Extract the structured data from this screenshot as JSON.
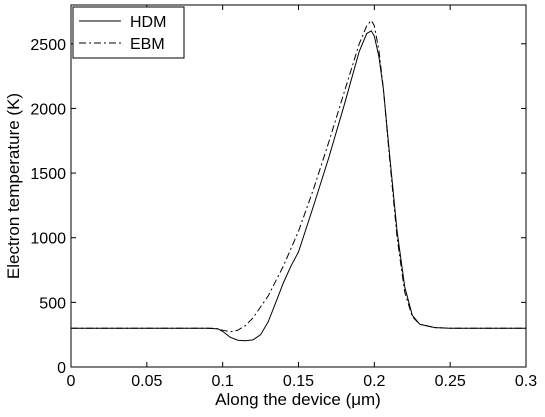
{
  "chart_data": {
    "type": "line",
    "title": "",
    "xlabel": "Along the device (μm)",
    "ylabel": "Electron temperature (K)",
    "xlim": [
      0,
      0.3
    ],
    "ylim": [
      0,
      2800
    ],
    "xticks": [
      0,
      0.05,
      0.1,
      0.15,
      0.2,
      0.25,
      0.3
    ],
    "xtick_labels": [
      "0",
      "0.05",
      "0.1",
      "0.15",
      "0.2",
      "0.25",
      "0.3"
    ],
    "yticks": [
      0,
      500,
      1000,
      1500,
      2000,
      2500
    ],
    "ytick_labels": [
      "0",
      "500",
      "1000",
      "1500",
      "2000",
      "2500"
    ],
    "grid": false,
    "legend_position": "top-left",
    "series": [
      {
        "name": "HDM",
        "style": "solid",
        "color": "#000000",
        "x": [
          0,
          0.05,
          0.09,
          0.097,
          0.1,
          0.105,
          0.11,
          0.115,
          0.12,
          0.125,
          0.13,
          0.135,
          0.14,
          0.145,
          0.15,
          0.16,
          0.17,
          0.18,
          0.19,
          0.195,
          0.198,
          0.2,
          0.203,
          0.206,
          0.21,
          0.215,
          0.22,
          0.225,
          0.23,
          0.24,
          0.25,
          0.3
        ],
        "y": [
          300,
          300,
          300,
          295,
          275,
          230,
          207,
          203,
          210,
          250,
          350,
          500,
          650,
          780,
          890,
          1250,
          1620,
          2020,
          2440,
          2580,
          2600,
          2560,
          2400,
          2150,
          1650,
          1050,
          620,
          400,
          330,
          305,
          300,
          300
        ]
      },
      {
        "name": "EBM",
        "style": "dashdot",
        "color": "#000000",
        "x": [
          0,
          0.05,
          0.095,
          0.1,
          0.105,
          0.11,
          0.115,
          0.12,
          0.13,
          0.14,
          0.15,
          0.16,
          0.17,
          0.18,
          0.19,
          0.195,
          0.198,
          0.2,
          0.203,
          0.206,
          0.21,
          0.215,
          0.22,
          0.225,
          0.23,
          0.24,
          0.25,
          0.3
        ],
        "y": [
          300,
          300,
          300,
          285,
          272,
          285,
          320,
          380,
          550,
          780,
          1050,
          1380,
          1740,
          2120,
          2500,
          2640,
          2680,
          2640,
          2450,
          2150,
          1620,
          1000,
          580,
          390,
          330,
          305,
          300,
          300
        ]
      }
    ]
  }
}
